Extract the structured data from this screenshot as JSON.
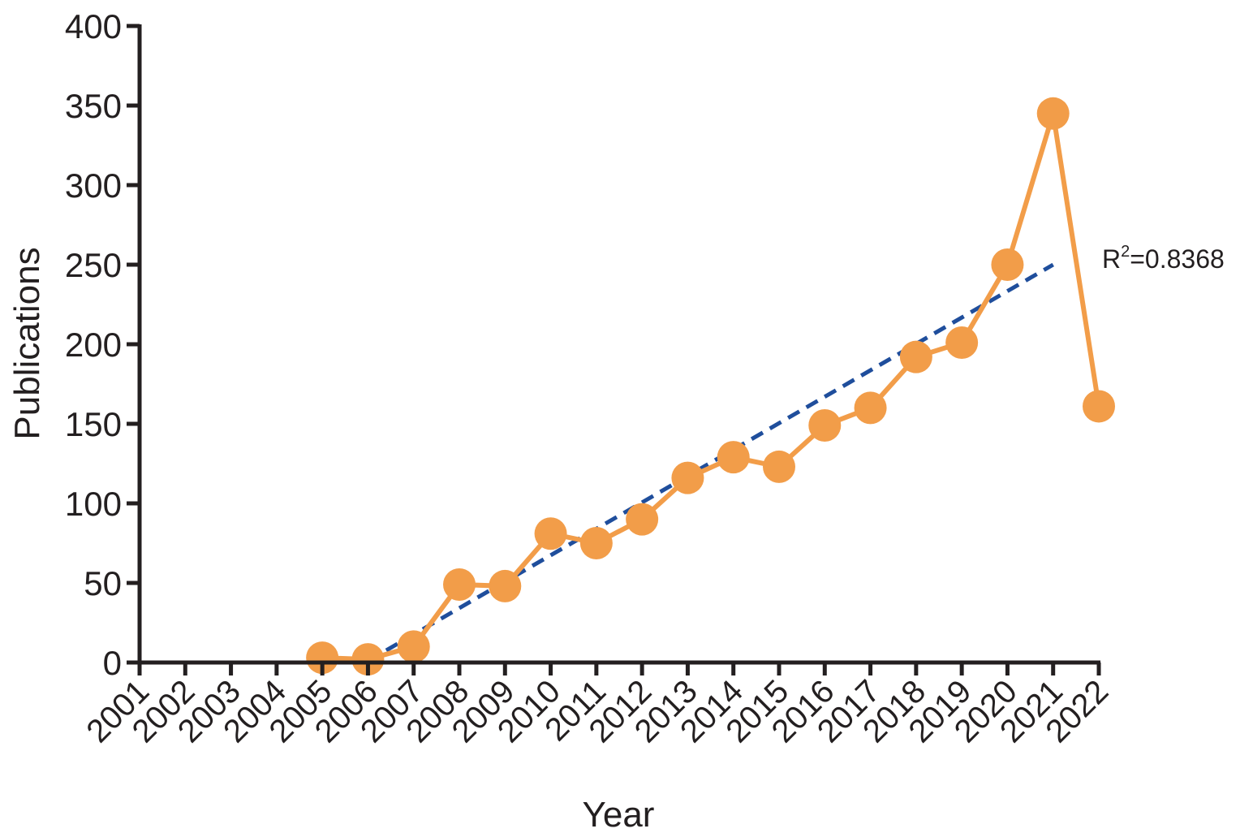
{
  "chart_data": {
    "type": "line",
    "xlabel": "Year",
    "ylabel": "Publications",
    "categories": [
      "2001",
      "2002",
      "2003",
      "2004",
      "2005",
      "2006",
      "2007",
      "2008",
      "2009",
      "2010",
      "2011",
      "2012",
      "2013",
      "2014",
      "2015",
      "2016",
      "2017",
      "2018",
      "2019",
      "2020",
      "2021",
      "2022"
    ],
    "yticks": [
      "0",
      "50",
      "100",
      "150",
      "200",
      "250",
      "300",
      "350",
      "400"
    ],
    "ylim": [
      0,
      400
    ],
    "grid": false,
    "series": [
      {
        "x": [
          "2005",
          "2006",
          "2007",
          "2008",
          "2009",
          "2010",
          "2011",
          "2012",
          "2013",
          "2014",
          "2015",
          "2016",
          "2017",
          "2018",
          "2019",
          "2020",
          "2021",
          "2022"
        ],
        "values": [
          3,
          2,
          10,
          49,
          48,
          81,
          75,
          90,
          116,
          129,
          123,
          149,
          160,
          192,
          201,
          250,
          345,
          161
        ],
        "color": "#f29d49"
      }
    ],
    "trendline": {
      "style": "dashed",
      "color": "#1f4e9c",
      "x": [
        "2006",
        "2021"
      ],
      "y": [
        1,
        250
      ],
      "label_prefix": "R",
      "label_sup": "2",
      "label_suffix": "=0.8368"
    }
  }
}
